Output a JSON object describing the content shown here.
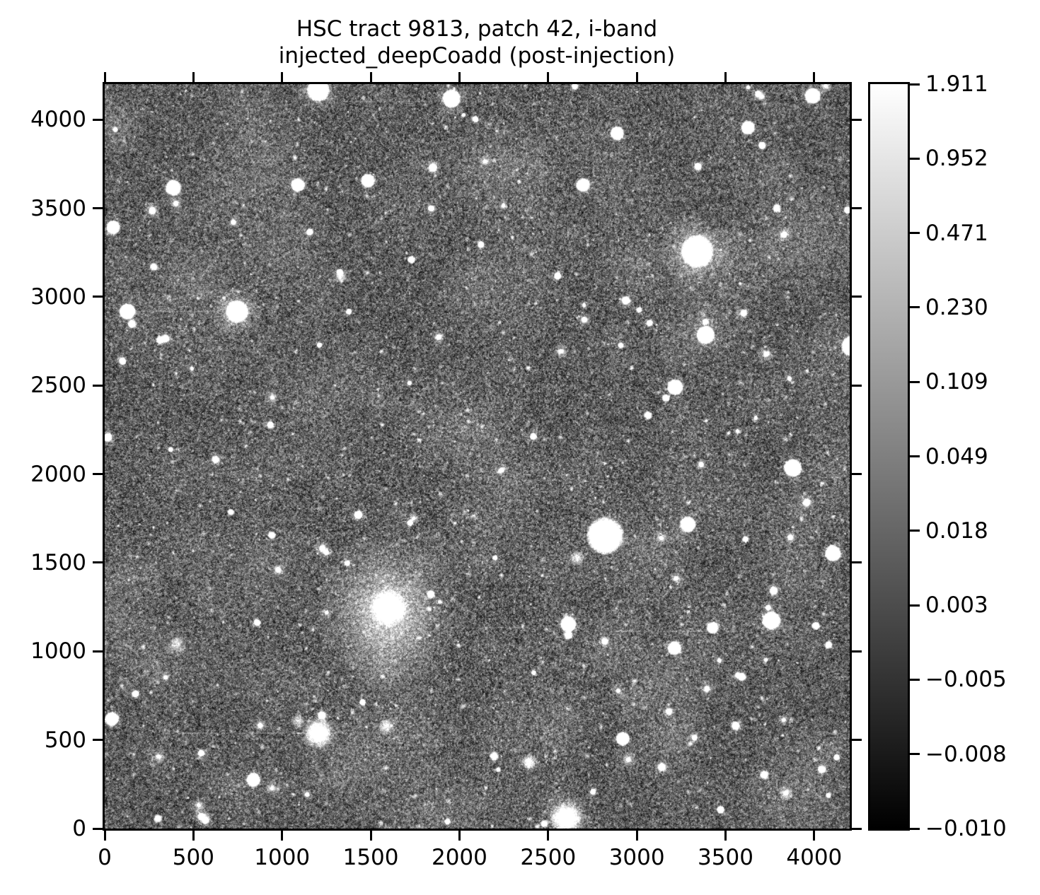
{
  "figure": {
    "title_line1": "HSC tract 9813, patch 42, i-band",
    "title_line2": "injected_deepCoadd (post-injection)"
  },
  "chart_data": {
    "type": "heatmap",
    "title": "HSC tract 9813, patch 42, i-band\ninjected_deepCoadd (post-injection)",
    "xlabel": "",
    "ylabel": "",
    "xlim": [
      0,
      4200
    ],
    "ylim": [
      0,
      4200
    ],
    "x_ticks": [
      0,
      500,
      1000,
      1500,
      2000,
      2500,
      3000,
      3500,
      4000
    ],
    "y_ticks": [
      0,
      500,
      1000,
      1500,
      2000,
      2500,
      3000,
      3500,
      4000
    ],
    "grid": false,
    "colorbar": {
      "cmap": "gray",
      "stretch": "asinh",
      "vmin": -0.01,
      "vmax": 1.911,
      "tick_labels": [
        "1.911",
        "0.952",
        "0.471",
        "0.230",
        "0.109",
        "0.049",
        "0.018",
        "0.003",
        "−0.005",
        "−0.008",
        "−0.010"
      ]
    },
    "image": {
      "description": "Deep grayscale coadded sky image of a galaxy cluster field: mottled noise background densely covered with faint stars and galaxies, several saturated bright stars with halos, a giant central elliptical galaxy, and faint horizontal streaks.",
      "render": {
        "seed": 1337,
        "background": {
          "mean": 92,
          "sigma": 64,
          "coarse_sigma": 68,
          "coarse_alpha": 0.5
        },
        "clouds": {
          "count": 170,
          "r_min": 25,
          "r_max": 95,
          "alpha": 0.05
        },
        "faint_stars": {
          "count": 2700,
          "r_min": 1.1,
          "r_max": 4.8
        },
        "medium_stars": {
          "count": 120,
          "r_min": 5,
          "r_max": 13
        },
        "cluster": {
          "x": 1700,
          "y": 1150,
          "sigma": 1050,
          "count": 420
        },
        "bright_sources": [
          {
            "x": 1205,
            "y": 4166,
            "core": 11,
            "halo": 34,
            "b": 1.0,
            "kind": "star"
          },
          {
            "x": 1955,
            "y": 4118,
            "core": 9,
            "halo": 26,
            "b": 0.95,
            "kind": "star"
          },
          {
            "x": 3340,
            "y": 3256,
            "core": 16,
            "halo": 56,
            "b": 1.0,
            "kind": "star"
          },
          {
            "x": 746,
            "y": 2917,
            "core": 11,
            "halo": 38,
            "b": 1.0,
            "kind": "star"
          },
          {
            "x": 1600,
            "y": 1245,
            "core": 14,
            "halo": 112,
            "b": 0.95,
            "kind": "galaxy"
          },
          {
            "x": 2821,
            "y": 1652,
            "core": 18,
            "halo": 36,
            "b": 1.0,
            "kind": "star"
          },
          {
            "x": 3388,
            "y": 2785,
            "core": 9,
            "halo": 22,
            "b": 0.95,
            "kind": "star"
          },
          {
            "x": 3216,
            "y": 2490,
            "core": 8,
            "halo": 20,
            "b": 0.9,
            "kind": "star"
          },
          {
            "x": 2614,
            "y": 1153,
            "core": 8,
            "halo": 20,
            "b": 0.9,
            "kind": "star"
          },
          {
            "x": 3759,
            "y": 1173,
            "core": 9,
            "halo": 24,
            "b": 0.95,
            "kind": "star"
          },
          {
            "x": 1205,
            "y": 539,
            "core": 11,
            "halo": 30,
            "b": 0.95,
            "kind": "galaxy"
          },
          {
            "x": 2602,
            "y": 60,
            "core": 12,
            "halo": 42,
            "b": 0.95,
            "kind": "galaxy"
          },
          {
            "x": 4210,
            "y": 2722,
            "core": 10,
            "halo": 24,
            "b": 0.95,
            "kind": "star"
          },
          {
            "x": 3991,
            "y": 4134,
            "core": 8,
            "halo": 20,
            "b": 0.9,
            "kind": "star"
          },
          {
            "x": 3627,
            "y": 3955,
            "core": 7,
            "halo": 16,
            "b": 0.85,
            "kind": "star"
          },
          {
            "x": 407,
            "y": 1041,
            "core": 6,
            "halo": 26,
            "b": 0.4,
            "kind": "galaxy"
          },
          {
            "x": 2394,
            "y": 375,
            "core": 6,
            "halo": 16,
            "b": 0.6,
            "kind": "galaxy"
          },
          {
            "x": 3212,
            "y": 1018,
            "core": 7,
            "halo": 15,
            "b": 0.8,
            "kind": "star"
          },
          {
            "x": 387,
            "y": 3615,
            "core": 8,
            "halo": 18,
            "b": 0.9,
            "kind": "star"
          },
          {
            "x": 1089,
            "y": 3631,
            "core": 7,
            "halo": 15,
            "b": 0.85,
            "kind": "star"
          },
          {
            "x": 1484,
            "y": 3655,
            "core": 7,
            "halo": 15,
            "b": 0.85,
            "kind": "star"
          },
          {
            "x": 48,
            "y": 3392,
            "core": 7,
            "halo": 16,
            "b": 0.85,
            "kind": "star"
          },
          {
            "x": 128,
            "y": 2917,
            "core": 8,
            "halo": 18,
            "b": 0.9,
            "kind": "star"
          },
          {
            "x": 3288,
            "y": 1716,
            "core": 8,
            "halo": 16,
            "b": 0.85,
            "kind": "star"
          },
          {
            "x": 3427,
            "y": 1133,
            "core": 6,
            "halo": 12,
            "b": 0.8,
            "kind": "star"
          },
          {
            "x": 2921,
            "y": 507,
            "core": 7,
            "halo": 14,
            "b": 0.85,
            "kind": "star"
          },
          {
            "x": 4106,
            "y": 1552,
            "core": 8,
            "halo": 20,
            "b": 0.9,
            "kind": "star"
          },
          {
            "x": 3879,
            "y": 2035,
            "core": 9,
            "halo": 20,
            "b": 0.9,
            "kind": "star"
          },
          {
            "x": 838,
            "y": 275,
            "core": 7,
            "halo": 14,
            "b": 0.85,
            "kind": "star"
          },
          {
            "x": 1588,
            "y": 575,
            "core": 6,
            "halo": 18,
            "b": 0.45,
            "kind": "galaxy"
          },
          {
            "x": 2697,
            "y": 3631,
            "core": 7,
            "halo": 15,
            "b": 0.85,
            "kind": "star"
          },
          {
            "x": 2889,
            "y": 3922,
            "core": 7,
            "halo": 15,
            "b": 0.85,
            "kind": "star"
          },
          {
            "x": 1329,
            "y": 3112,
            "core": 5,
            "halo": 14,
            "b": 0.5,
            "kind": "galaxy"
          },
          {
            "x": 2661,
            "y": 1524,
            "core": 6,
            "halo": 14,
            "b": 0.5,
            "kind": "galaxy"
          },
          {
            "x": 40,
            "y": 618,
            "core": 7,
            "halo": 16,
            "b": 0.85,
            "kind": "star"
          },
          {
            "x": 1089,
            "y": 607,
            "core": 5,
            "halo": 14,
            "b": 0.45,
            "kind": "galaxy"
          }
        ],
        "streaks": [
          {
            "y": 4102,
            "x0": 1330,
            "x1": 2075,
            "alpha": 0.13
          },
          {
            "y": 2917,
            "x0": 80,
            "x1": 600,
            "alpha": 0.12
          },
          {
            "y": 1133,
            "x0": 1930,
            "x1": 2410,
            "alpha": 0.12
          },
          {
            "y": 1113,
            "x0": 2880,
            "x1": 3590,
            "alpha": 0.12
          },
          {
            "y": 539,
            "x0": 370,
            "x1": 1345,
            "alpha": 0.12
          }
        ]
      }
    }
  }
}
